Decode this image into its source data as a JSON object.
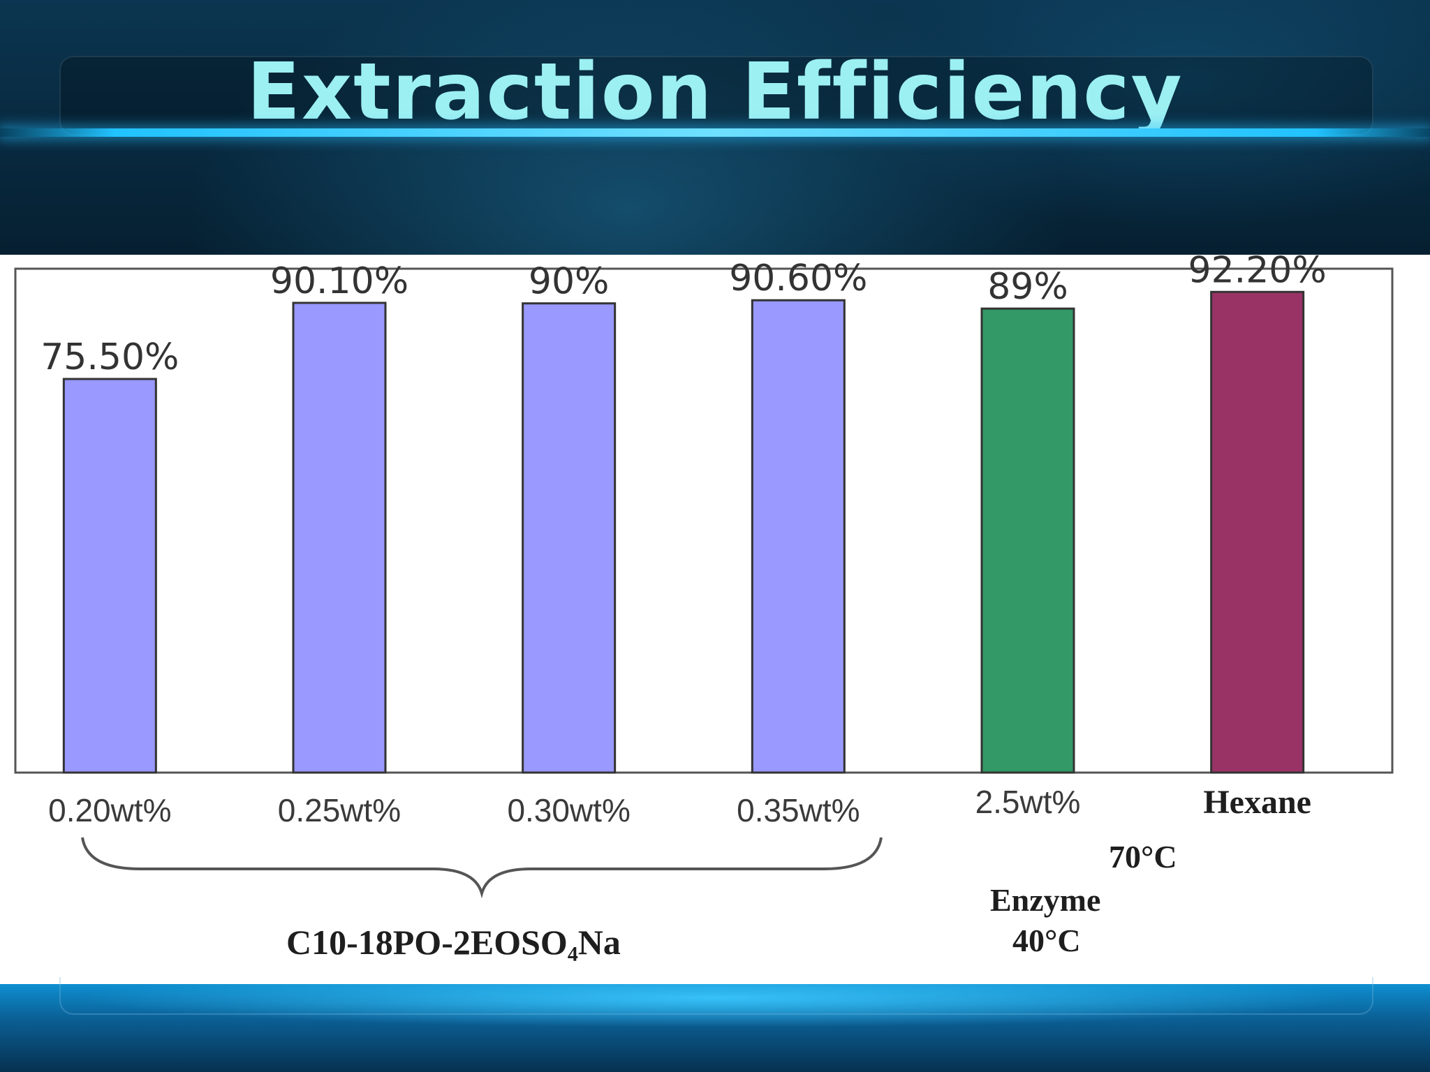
{
  "slide": {
    "title": "Extraction Efficiency"
  },
  "chart_data": {
    "type": "bar",
    "title": "",
    "xlabel": "",
    "ylabel": "",
    "ylim": [
      0,
      100
    ],
    "grid": false,
    "categories": [
      "0.20wt%",
      "0.25wt%",
      "0.30wt%",
      "0.35wt%",
      "2.5wt%",
      "Hexane"
    ],
    "values": [
      75.5,
      90.1,
      90.0,
      90.6,
      89.0,
      92.2
    ],
    "data_labels": [
      "75.50%",
      "90.10%",
      "90%",
      "90.60%",
      "89%",
      "92.20%"
    ],
    "bar_colors": [
      "#9999ff",
      "#9999ff",
      "#9999ff",
      "#9999ff",
      "#339966",
      "#993366"
    ],
    "annotations": {
      "group_label": "C10-18PO-2EOSO₄Na",
      "enzyme_label": "Enzyme",
      "enzyme_temp": "40°C",
      "hexane_temp": "70°C"
    }
  },
  "colors": {
    "title": "#9cf0f2",
    "accent_line": "#21c2ff",
    "bar_border": "#333333"
  }
}
